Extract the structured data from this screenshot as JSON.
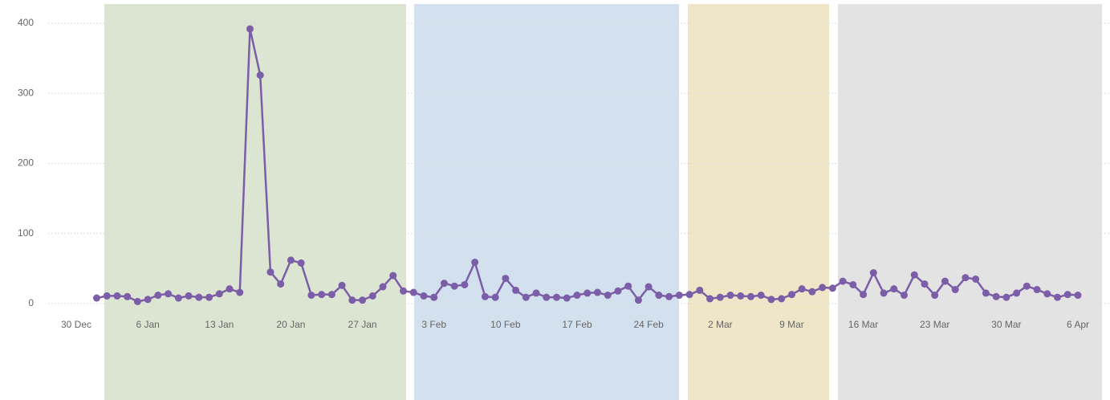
{
  "chart_data": {
    "type": "line",
    "color": "#7b5ea7",
    "x": [
      "30 Dec",
      "31 Dec",
      "1 Jan",
      "2 Jan",
      "3 Jan",
      "4 Jan",
      "5 Jan",
      "6 Jan",
      "7 Jan",
      "8 Jan",
      "9 Jan",
      "10 Jan",
      "11 Jan",
      "12 Jan",
      "13 Jan",
      "14 Jan",
      "15 Jan",
      "16 Jan",
      "17 Jan",
      "18 Jan",
      "19 Jan",
      "20 Jan",
      "21 Jan",
      "22 Jan",
      "23 Jan",
      "24 Jan",
      "25 Jan",
      "26 Jan",
      "27 Jan",
      "28 Jan",
      "29 Jan",
      "30 Jan",
      "31 Jan",
      "1 Feb",
      "2 Feb",
      "3 Feb",
      "4 Feb",
      "5 Feb",
      "6 Feb",
      "7 Feb",
      "8 Feb",
      "9 Feb",
      "10 Feb",
      "11 Feb",
      "12 Feb",
      "13 Feb",
      "14 Feb",
      "15 Feb",
      "16 Feb",
      "17 Feb",
      "18 Feb",
      "19 Feb",
      "20 Feb",
      "21 Feb",
      "22 Feb",
      "23 Feb",
      "24 Feb",
      "25 Feb",
      "26 Feb",
      "27 Feb",
      "28 Feb",
      "29 Feb",
      "1 Mar",
      "2 Mar",
      "3 Mar",
      "4 Mar",
      "5 Mar",
      "6 Mar",
      "7 Mar",
      "8 Mar",
      "9 Mar",
      "10 Mar",
      "11 Mar",
      "12 Mar",
      "13 Mar",
      "14 Mar",
      "15 Mar",
      "16 Mar",
      "17 Mar",
      "18 Mar",
      "19 Mar",
      "20 Mar",
      "21 Mar",
      "22 Mar",
      "23 Mar",
      "24 Mar",
      "25 Mar",
      "26 Mar",
      "27 Mar",
      "28 Mar",
      "29 Mar",
      "30 Mar",
      "31 Mar",
      "1 Apr",
      "2 Apr",
      "3 Apr",
      "4 Apr",
      "5 Apr",
      "6 Apr"
    ],
    "values": [
      null,
      null,
      8,
      11,
      11,
      10,
      3,
      6,
      12,
      14,
      8,
      11,
      9,
      9,
      14,
      21,
      16,
      392,
      326,
      45,
      28,
      62,
      58,
      12,
      13,
      13,
      26,
      5,
      5,
      11,
      24,
      40,
      18,
      16,
      11,
      9,
      29,
      25,
      27,
      59,
      10,
      9,
      36,
      19,
      9,
      15,
      9,
      9,
      8,
      12,
      15,
      16,
      12,
      18,
      25,
      5,
      24,
      12,
      10,
      12,
      13,
      19,
      7,
      9,
      12,
      11,
      10,
      12,
      6,
      7,
      13,
      21,
      17,
      23,
      22,
      32,
      27,
      13,
      44,
      15,
      21,
      12,
      41,
      28,
      12,
      32,
      20,
      37,
      35,
      15,
      10,
      9,
      15,
      25,
      20,
      14,
      9,
      13,
      12
    ],
    "xticks": [
      "30 Dec",
      "6 Jan",
      "13 Jan",
      "20 Jan",
      "27 Jan",
      "3 Feb",
      "10 Feb",
      "17 Feb",
      "24 Feb",
      "2 Mar",
      "9 Mar",
      "16 Mar",
      "23 Mar",
      "30 Mar",
      "6 Apr"
    ],
    "ylim": [
      0,
      400
    ],
    "yticks": [
      0,
      100,
      200,
      300,
      400
    ],
    "grid": true
  }
}
